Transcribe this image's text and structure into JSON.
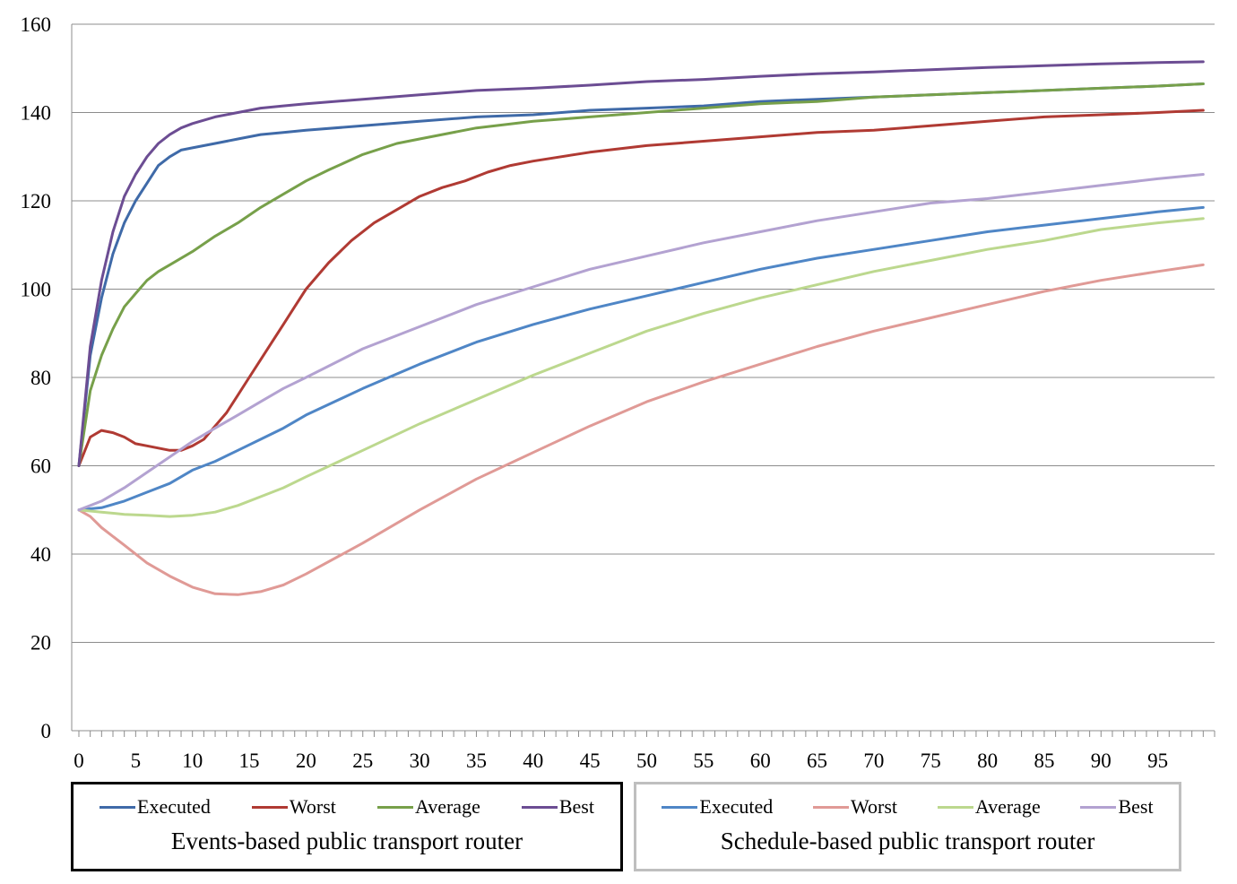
{
  "chart_data": {
    "type": "line",
    "ylim": [
      0,
      160
    ],
    "xlim": [
      0,
      100
    ],
    "yticks": [
      0,
      20,
      40,
      60,
      80,
      100,
      120,
      140,
      160
    ],
    "xticks": [
      0,
      5,
      10,
      15,
      20,
      25,
      30,
      35,
      40,
      45,
      50,
      55,
      60,
      65,
      70,
      75,
      80,
      85,
      90,
      95
    ],
    "grid": "horizontal",
    "legend_groups": [
      {
        "title": "Events-based public transport router",
        "placement": "bottom-left"
      },
      {
        "title": "Schedule-based public transport router",
        "placement": "bottom-right"
      }
    ],
    "series": [
      {
        "name": "Executed",
        "group": 0,
        "color": "#3f6aa8",
        "x": [
          0,
          1,
          2,
          3,
          4,
          5,
          6,
          7,
          8,
          9,
          10,
          12,
          14,
          16,
          18,
          20,
          25,
          30,
          35,
          40,
          45,
          50,
          55,
          60,
          65,
          70,
          75,
          80,
          85,
          90,
          95,
          99
        ],
        "y": [
          60,
          85,
          98,
          108,
          115,
          120,
          124,
          128,
          130,
          131.5,
          132,
          133,
          134,
          135,
          135.5,
          136,
          137,
          138,
          139,
          139.5,
          140.5,
          141,
          141.5,
          142.5,
          143,
          143.5,
          144,
          144.5,
          145,
          145.5,
          146,
          146.5
        ]
      },
      {
        "name": "Worst",
        "group": 0,
        "color": "#b03a33",
        "x": [
          0,
          1,
          2,
          3,
          4,
          5,
          6,
          7,
          8,
          9,
          10,
          11,
          12,
          13,
          14,
          15,
          16,
          17,
          18,
          19,
          20,
          22,
          24,
          26,
          28,
          30,
          32,
          34,
          36,
          38,
          40,
          45,
          50,
          55,
          60,
          65,
          70,
          75,
          80,
          85,
          90,
          95,
          99
        ],
        "y": [
          60,
          66.5,
          68,
          67.5,
          66.5,
          65,
          64.5,
          64,
          63.5,
          63.5,
          64.5,
          66,
          69,
          72,
          76,
          80,
          84,
          88,
          92,
          96,
          100,
          106,
          111,
          115,
          118,
          121,
          123,
          124.5,
          126.5,
          128,
          129,
          131,
          132.5,
          133.5,
          134.5,
          135.5,
          136,
          137,
          138,
          139,
          139.5,
          140,
          140.5
        ]
      },
      {
        "name": "Average",
        "group": 0,
        "color": "#77a04a",
        "x": [
          0,
          1,
          2,
          3,
          4,
          5,
          6,
          7,
          8,
          10,
          12,
          14,
          16,
          18,
          20,
          22,
          25,
          28,
          30,
          35,
          40,
          45,
          50,
          55,
          60,
          65,
          70,
          75,
          80,
          85,
          90,
          95,
          99
        ],
        "y": [
          60,
          77,
          85,
          91,
          96,
          99,
          102,
          104,
          105.5,
          108.5,
          112,
          115,
          118.5,
          121.5,
          124.5,
          127,
          130.5,
          133,
          134,
          136.5,
          138,
          139,
          140,
          141,
          142,
          142.5,
          143.5,
          144,
          144.5,
          145,
          145.5,
          146,
          146.5
        ]
      },
      {
        "name": "Best",
        "group": 0,
        "color": "#6c4d93",
        "x": [
          0,
          1,
          2,
          3,
          4,
          5,
          6,
          7,
          8,
          9,
          10,
          12,
          14,
          16,
          18,
          20,
          25,
          30,
          35,
          40,
          45,
          50,
          55,
          60,
          65,
          70,
          75,
          80,
          85,
          90,
          95,
          99
        ],
        "y": [
          60,
          87,
          102,
          113,
          121,
          126,
          130,
          133,
          135,
          136.5,
          137.5,
          139,
          140,
          141,
          141.5,
          142,
          143,
          144,
          145,
          145.5,
          146.2,
          147,
          147.5,
          148.2,
          148.8,
          149.2,
          149.7,
          150.2,
          150.6,
          151,
          151.3,
          151.5
        ]
      },
      {
        "name": "Executed",
        "group": 1,
        "color": "#4f86c6",
        "x": [
          0,
          2,
          4,
          6,
          8,
          10,
          12,
          14,
          16,
          18,
          20,
          25,
          30,
          35,
          40,
          45,
          50,
          55,
          60,
          65,
          70,
          75,
          80,
          85,
          90,
          95,
          99
        ],
        "y": [
          50,
          50.5,
          52,
          54,
          56,
          59,
          61,
          63.5,
          66,
          68.5,
          71.5,
          77.5,
          83,
          88,
          92,
          95.5,
          98.5,
          101.5,
          104.5,
          107,
          109,
          111,
          113,
          114.5,
          116,
          117.5,
          118.5
        ]
      },
      {
        "name": "Worst",
        "group": 1,
        "color": "#e09a96",
        "x": [
          0,
          1,
          2,
          4,
          6,
          8,
          10,
          12,
          14,
          16,
          18,
          20,
          25,
          30,
          35,
          40,
          45,
          50,
          55,
          60,
          65,
          70,
          75,
          80,
          85,
          90,
          95,
          99
        ],
        "y": [
          50,
          48.5,
          46,
          42,
          38,
          35,
          32.5,
          31,
          30.8,
          31.5,
          33,
          35.5,
          42.5,
          50,
          57,
          63,
          69,
          74.5,
          79,
          83,
          87,
          90.5,
          93.5,
          96.5,
          99.5,
          102,
          104,
          105.5
        ]
      },
      {
        "name": "Average",
        "group": 1,
        "color": "#bcd88e",
        "x": [
          0,
          2,
          4,
          6,
          8,
          10,
          12,
          14,
          16,
          18,
          20,
          25,
          30,
          35,
          40,
          45,
          50,
          55,
          60,
          65,
          70,
          75,
          80,
          85,
          90,
          95,
          99
        ],
        "y": [
          50,
          49.5,
          49,
          48.8,
          48.5,
          48.8,
          49.5,
          51,
          53,
          55,
          57.5,
          63.5,
          69.5,
          75,
          80.5,
          85.5,
          90.5,
          94.5,
          98,
          101,
          104,
          106.5,
          109,
          111,
          113.5,
          115,
          116
        ]
      },
      {
        "name": "Best",
        "group": 1,
        "color": "#b3a2d1",
        "x": [
          0,
          2,
          4,
          6,
          8,
          10,
          12,
          14,
          16,
          18,
          20,
          25,
          30,
          35,
          40,
          45,
          50,
          55,
          60,
          65,
          70,
          75,
          80,
          85,
          90,
          95,
          99
        ],
        "y": [
          50,
          52,
          55,
          58.5,
          62,
          65.5,
          68.5,
          71.5,
          74.5,
          77.5,
          80,
          86.5,
          91.5,
          96.5,
          100.5,
          104.5,
          107.5,
          110.5,
          113,
          115.5,
          117.5,
          119.5,
          120.5,
          122,
          123.5,
          125,
          126
        ]
      }
    ]
  }
}
